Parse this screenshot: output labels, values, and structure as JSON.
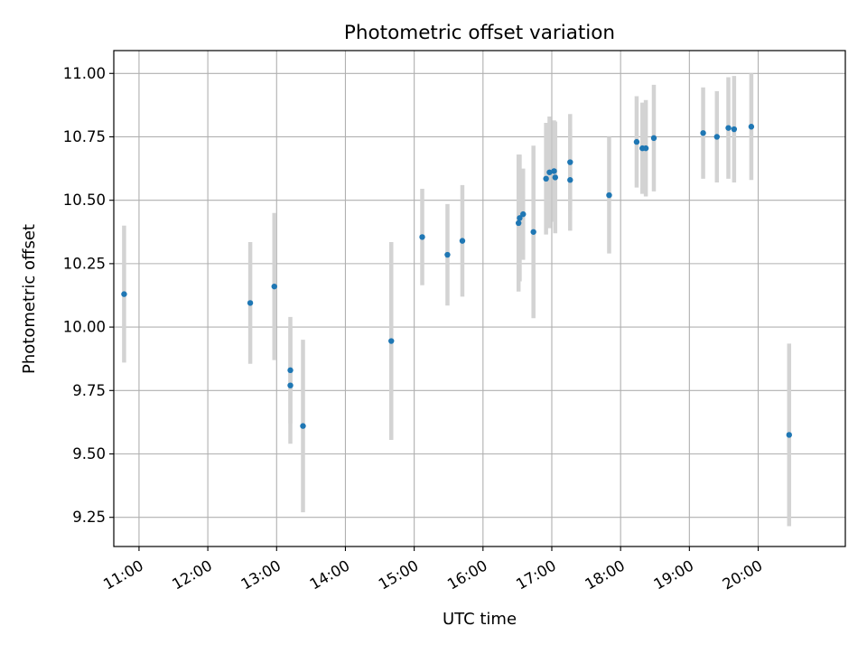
{
  "chart_data": {
    "type": "scatter",
    "title": "Photometric offset variation",
    "xlabel": "UTC time",
    "ylabel": "Photometric offset",
    "x_ticks": [
      "11:00",
      "12:00",
      "13:00",
      "14:00",
      "15:00",
      "16:00",
      "17:00",
      "18:00",
      "19:00",
      "20:00"
    ],
    "y_ticks": [
      "9.25",
      "9.50",
      "9.75",
      "10.00",
      "10.25",
      "10.50",
      "10.75",
      "11.00"
    ],
    "xlim": [
      "10:38",
      "21:16"
    ],
    "ylim": [
      9.135,
      11.09
    ],
    "grid": true,
    "colors": {
      "point": "#1f77b4",
      "errorbar": "#d3d3d3",
      "grid": "#b0b0b0"
    },
    "points": [
      {
        "x": "10:47",
        "y": 10.13,
        "err": 0.27
      },
      {
        "x": "12:37",
        "y": 10.095,
        "err": 0.24
      },
      {
        "x": "12:58",
        "y": 10.16,
        "err": 0.29
      },
      {
        "x": "13:12",
        "y": 9.83,
        "err": 0.21
      },
      {
        "x": "13:12",
        "y": 9.77,
        "err": 0.23
      },
      {
        "x": "13:23",
        "y": 9.61,
        "err": 0.34
      },
      {
        "x": "14:40",
        "y": 9.945,
        "err": 0.39
      },
      {
        "x": "15:07",
        "y": 10.355,
        "err": 0.19
      },
      {
        "x": "15:29",
        "y": 10.285,
        "err": 0.2
      },
      {
        "x": "15:42",
        "y": 10.34,
        "err": 0.22
      },
      {
        "x": "16:31",
        "y": 10.41,
        "err": 0.27
      },
      {
        "x": "16:32",
        "y": 10.43,
        "err": 0.25
      },
      {
        "x": "16:35",
        "y": 10.445,
        "err": 0.18
      },
      {
        "x": "16:44",
        "y": 10.375,
        "err": 0.34
      },
      {
        "x": "16:55",
        "y": 10.585,
        "err": 0.22
      },
      {
        "x": "16:58",
        "y": 10.61,
        "err": 0.22
      },
      {
        "x": "17:02",
        "y": 10.615,
        "err": 0.2
      },
      {
        "x": "17:03",
        "y": 10.59,
        "err": 0.22
      },
      {
        "x": "17:16",
        "y": 10.65,
        "err": 0.19
      },
      {
        "x": "17:16",
        "y": 10.58,
        "err": 0.2
      },
      {
        "x": "17:50",
        "y": 10.52,
        "err": 0.23
      },
      {
        "x": "18:14",
        "y": 10.73,
        "err": 0.18
      },
      {
        "x": "18:19",
        "y": 10.705,
        "err": 0.18
      },
      {
        "x": "18:22",
        "y": 10.705,
        "err": 0.19
      },
      {
        "x": "18:29",
        "y": 10.745,
        "err": 0.21
      },
      {
        "x": "19:12",
        "y": 10.765,
        "err": 0.18
      },
      {
        "x": "19:24",
        "y": 10.75,
        "err": 0.18
      },
      {
        "x": "19:34",
        "y": 10.785,
        "err": 0.2
      },
      {
        "x": "19:39",
        "y": 10.78,
        "err": 0.21
      },
      {
        "x": "19:54",
        "y": 10.79,
        "err": 0.21
      },
      {
        "x": "20:27",
        "y": 9.575,
        "err": 0.36
      }
    ]
  }
}
